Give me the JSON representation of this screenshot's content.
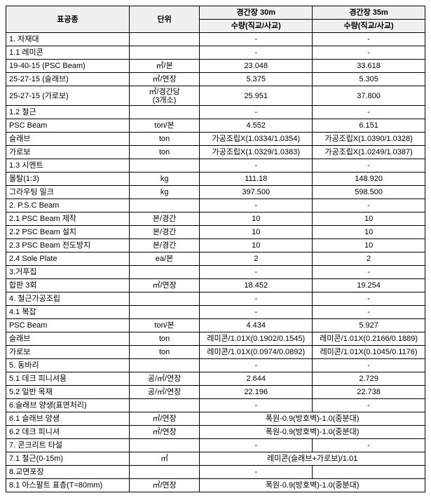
{
  "header": {
    "item": "표공종",
    "unit": "단위",
    "span30": "경간장 30m",
    "span35": "경간장 35m",
    "qty": "수량(직교/사교)"
  },
  "rows": [
    {
      "item": "1. 자재대",
      "unit": "",
      "v30": "-",
      "v35": "-"
    },
    {
      "item": "1.1 레미콘",
      "unit": "",
      "v30": "-",
      "v35": "-"
    },
    {
      "item": "19-40-15 (PSC Beam)",
      "unit": "㎥/본",
      "v30": "23.048",
      "v35": "33.618"
    },
    {
      "item": "25-27-15 (슬래브)",
      "unit": "㎥/연장",
      "v30": "5.375",
      "v35": "5.305"
    },
    {
      "item": "25-27-15 (가로보)",
      "unit": "㎥/경간당\n(3개소)",
      "v30": "25.951",
      "v35": "37.800"
    },
    {
      "item": "1.2 철근",
      "unit": "",
      "v30": "-",
      "v35": "-"
    },
    {
      "item": "PSC Beam",
      "unit": "ton/본",
      "v30": "4.552",
      "v35": "6.151"
    },
    {
      "item": "슬래브",
      "unit": "ton",
      "v30": "가공조립X(1.0334/1.0354)",
      "v35": "가공조립X(1.0390/1.0328)"
    },
    {
      "item": "가로보",
      "unit": "ton",
      "v30": "가공조립X(1.0329/1.0383)",
      "v35": "가공조립X(1.0249/1.0387)"
    },
    {
      "item": "1.3 시멘트",
      "unit": "",
      "v30": "-",
      "v35": "-"
    },
    {
      "item": "몰탈(1:3)",
      "unit": "kg",
      "v30": "111.18",
      "v35": "148.920"
    },
    {
      "item": "그라우팅 밀크",
      "unit": "kg",
      "v30": "397.500",
      "v35": "598.500"
    },
    {
      "item": "2. P.S.C Beam",
      "unit": "",
      "v30": "-",
      "v35": "-"
    },
    {
      "item": "2.1 PSC Beam 제작",
      "unit": "본/경간",
      "v30": "10",
      "v35": "10"
    },
    {
      "item": "2.2 PSC Beam 설치",
      "unit": "본/경간",
      "v30": "10",
      "v35": "10"
    },
    {
      "item": "2.3 PSC Beam 전도방지",
      "unit": "본/경간",
      "v30": "10",
      "v35": "10"
    },
    {
      "item": "2.4 Sole Plate",
      "unit": "ea/본",
      "v30": "2",
      "v35": "2"
    },
    {
      "item": "3.거푸집",
      "unit": "",
      "v30": "-",
      "v35": "-"
    },
    {
      "item": "합판 3회",
      "unit": "㎡/연장",
      "v30": "18.452",
      "v35": "19.254"
    },
    {
      "item": "4. 철근가공조립",
      "unit": "",
      "v30": "-",
      "v35": "-"
    },
    {
      "item": "4.1 복잡",
      "unit": "",
      "v30": "-",
      "v35": "-"
    },
    {
      "item": "PSC Beam",
      "unit": "ton/본",
      "v30": "4.434",
      "v35": "5.927"
    },
    {
      "item": "슬래브",
      "unit": "ton",
      "v30": "레미콘/1.01X(0.1902/0.1545)",
      "v35": "레미콘/1.01X(0.2166/0.1889)"
    },
    {
      "item": "가로보",
      "unit": "ton",
      "v30": "레미콘/1.01X(0.0974/0.0892)",
      "v35": "레미콘/1.01X(0.1045/0.1176)"
    },
    {
      "item": "5. 동바리",
      "unit": "",
      "v30": "-",
      "v35": "-"
    },
    {
      "item": "5.1 데크 피니셔용",
      "unit": "공/㎡/연장",
      "v30": "2.644",
      "v35": "2.729"
    },
    {
      "item": "5.2 일반 목재",
      "unit": "공/㎡/연장",
      "v30": "22.196",
      "v35": "22.738"
    },
    {
      "item": "6.슬래브 양생(표면처리)",
      "unit": "",
      "v30": "-",
      "v35": "-"
    },
    {
      "item": "6.1 슬래브 양생",
      "unit": "㎡/연장",
      "merged": "폭원-0.9(방호벽)-1.0(중분대)"
    },
    {
      "item": "6.2 데크 피니셔",
      "unit": "㎡/연장",
      "merged": "폭원-0.9(방호벽)-1.0(중분대)"
    },
    {
      "item": "7. 콘크리트 타설",
      "unit": "",
      "v30": "-",
      "v35": "-"
    },
    {
      "item": "7.1 철근(0-15m)",
      "unit": "㎥",
      "merged": "레미콘(슬래브+가로보)/1.01"
    },
    {
      "item": "8.교면포장",
      "unit": "",
      "v30": "-",
      "v35": "",
      "blank35": true
    },
    {
      "item": "8.1 아스팔트 표층(T=80mm)",
      "unit": "㎡/연장",
      "merged": "폭원-0.9(방호벽)-1.0(중분대)"
    }
  ]
}
